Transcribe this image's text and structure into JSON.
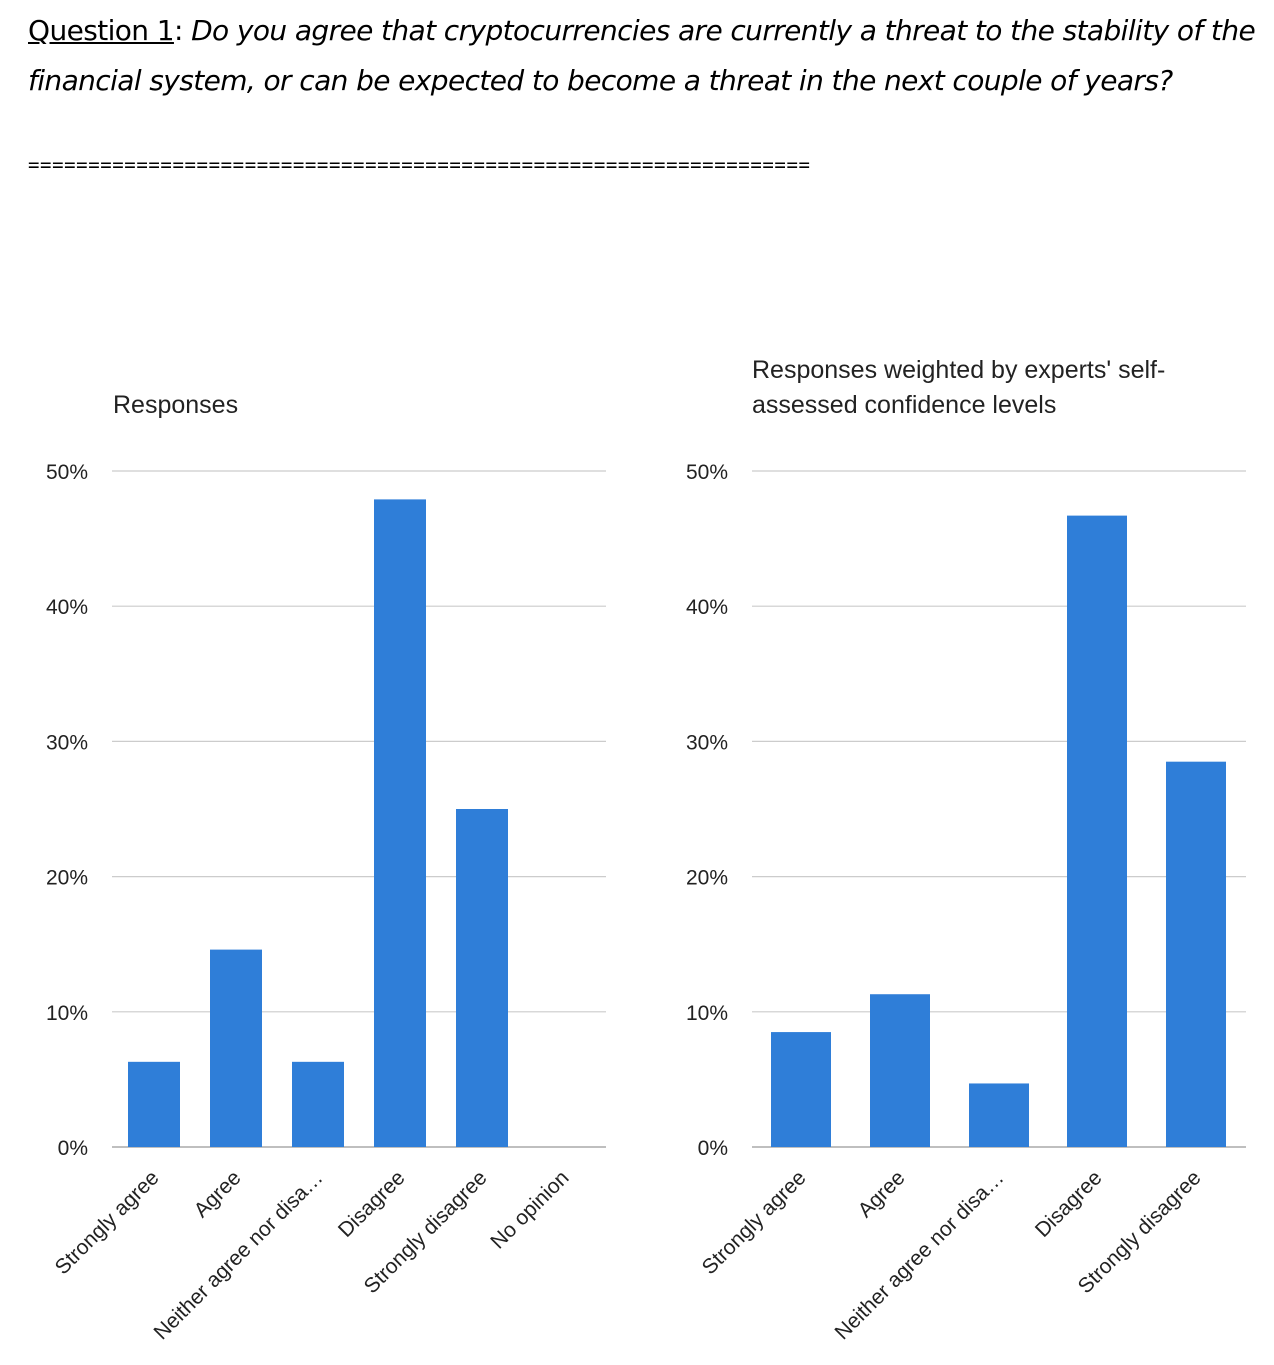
{
  "question": {
    "label": "Question 1",
    "separator": ":",
    "text": " Do you agree that cryptocurrencies are currently a threat to the stability of the financial system, or can be expected to become a threat in the next couple of years?"
  },
  "separator_line": "=================================================================",
  "colors": {
    "bar": "#2f7ed8",
    "grid": "#cccccc",
    "baseline": "#999999"
  },
  "chart_data": [
    {
      "type": "bar",
      "title_lines": [
        "Responses"
      ],
      "categories": [
        "Strongly agree",
        "Agree",
        "Neither agree nor disa…",
        "Disagree",
        "Strongly disagree",
        "No opinion"
      ],
      "values": [
        6.3,
        14.6,
        6.3,
        47.9,
        25.0,
        0
      ],
      "yticks": [
        "0%",
        "10%",
        "20%",
        "30%",
        "40%",
        "50%"
      ],
      "ylim": [
        0,
        50
      ],
      "grid": true
    },
    {
      "type": "bar",
      "title_lines": [
        "Responses weighted by experts' self-",
        "assessed confidence levels"
      ],
      "categories": [
        "Strongly agree",
        "Agree",
        "Neither agree nor disa…",
        "Disagree",
        "Strongly disagree"
      ],
      "values": [
        8.5,
        11.3,
        4.7,
        46.7,
        28.5
      ],
      "yticks": [
        "0%",
        "10%",
        "20%",
        "30%",
        "40%",
        "50%"
      ],
      "ylim": [
        0,
        50
      ],
      "grid": true
    }
  ]
}
